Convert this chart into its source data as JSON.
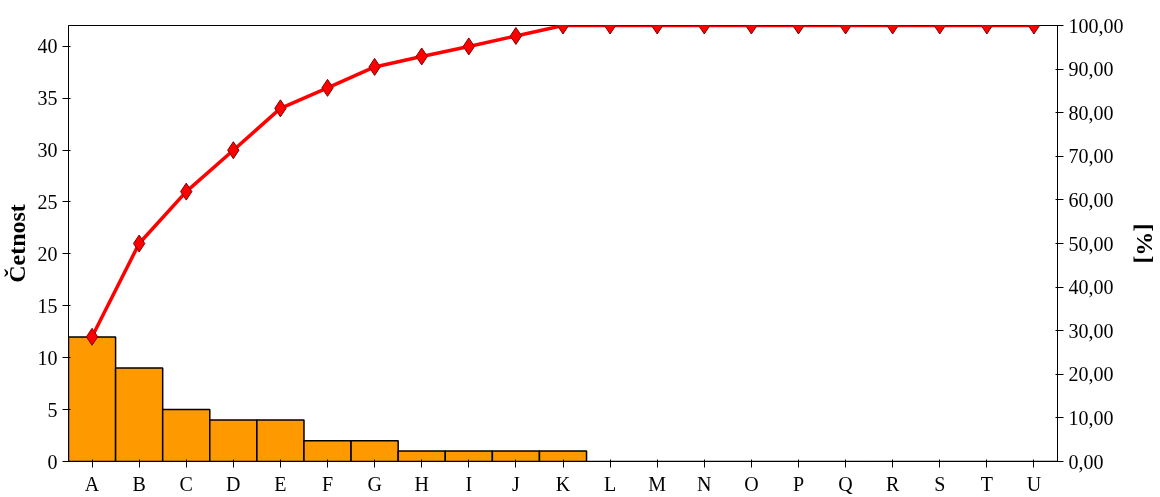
{
  "chart_data": {
    "type": "bar",
    "categories": [
      "A",
      "B",
      "C",
      "D",
      "E",
      "F",
      "G",
      "H",
      "I",
      "J",
      "K",
      "L",
      "M",
      "N",
      "O",
      "P",
      "Q",
      "R",
      "S",
      "T",
      "U"
    ],
    "ylabel": "Četnost",
    "y2label": "[%]",
    "ylim": [
      0,
      42
    ],
    "yticks": [
      0,
      5,
      10,
      15,
      20,
      25,
      30,
      35,
      40
    ],
    "y2lim": [
      0,
      100
    ],
    "y2ticks": [
      {
        "value": 0,
        "label": "0,00"
      },
      {
        "value": 10,
        "label": "10,00"
      },
      {
        "value": 20,
        "label": "20,00"
      },
      {
        "value": 30,
        "label": "30,00"
      },
      {
        "value": 40,
        "label": "40,00"
      },
      {
        "value": 50,
        "label": "50,00"
      },
      {
        "value": 60,
        "label": "60,00"
      },
      {
        "value": 70,
        "label": "70,00"
      },
      {
        "value": 80,
        "label": "80,00"
      },
      {
        "value": 90,
        "label": "90,00"
      },
      {
        "value": 100,
        "label": "100,00"
      }
    ],
    "grid": false,
    "series": [
      {
        "color": "#ff9900",
        "values": [
          12,
          9,
          5,
          4,
          4,
          2,
          2,
          1,
          1,
          1,
          1,
          0,
          0,
          0,
          0,
          0,
          0,
          0,
          0,
          0,
          0
        ]
      },
      {
        "type": "line",
        "axis": "y2",
        "color": "#ff0000",
        "marker": "diamond",
        "line_style": "solid",
        "values": [
          28.6,
          50.0,
          61.9,
          71.4,
          81.0,
          85.7,
          90.5,
          92.9,
          95.2,
          97.6,
          100,
          100,
          100,
          100,
          100,
          100,
          100,
          100,
          100,
          100,
          100
        ]
      }
    ]
  }
}
